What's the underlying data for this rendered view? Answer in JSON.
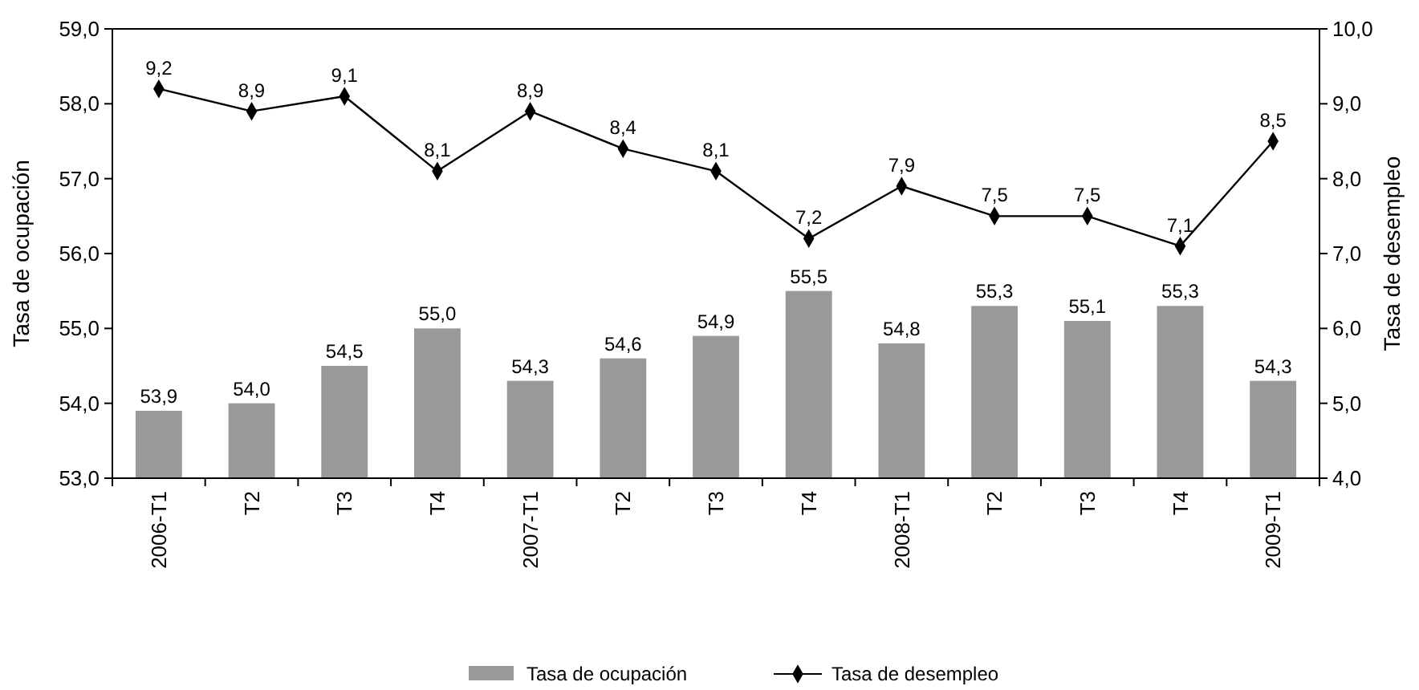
{
  "chart_data": {
    "type": "bar",
    "categories": [
      "2006-T1",
      "T2",
      "T3",
      "T4",
      "2007-T1",
      "T2",
      "T3",
      "T4",
      "2008-T1",
      "T2",
      "T3",
      "T4",
      "2009-T1"
    ],
    "series": [
      {
        "name": "Tasa de ocupación",
        "color": "#999999",
        "values": [
          53.9,
          54.0,
          54.5,
          55.0,
          54.3,
          54.6,
          54.9,
          55.5,
          54.8,
          55.3,
          55.1,
          55.3,
          54.3
        ],
        "value_labels": [
          "53,9",
          "54,0",
          "54,5",
          "55,0",
          "54,3",
          "54,6",
          "54,9",
          "55,5",
          "54,8",
          "55,3",
          "55,1",
          "55,3",
          "54,3"
        ]
      },
      {
        "name": "Tasa de desempleo",
        "type": "line",
        "axis": "y2",
        "color": "#000000",
        "marker": "diamond",
        "values": [
          9.2,
          8.9,
          9.1,
          8.1,
          8.9,
          8.4,
          8.1,
          7.2,
          7.9,
          7.5,
          7.5,
          7.1,
          8.5
        ],
        "value_labels": [
          "9,2",
          "8,9",
          "9,1",
          "8,1",
          "8,9",
          "8,4",
          "8,1",
          "7,2",
          "7,9",
          "7,5",
          "7,5",
          "7,1",
          "8,5"
        ]
      }
    ],
    "ylabel": "Tasa de ocupación",
    "y2label": "Tasa de desempleo",
    "ylim": [
      53,
      59
    ],
    "yticks": [
      {
        "value": 53,
        "label": "53,0"
      },
      {
        "value": 54,
        "label": "54,0"
      },
      {
        "value": 55,
        "label": "55,0"
      },
      {
        "value": 56,
        "label": "56,0"
      },
      {
        "value": 57,
        "label": "57,0"
      },
      {
        "value": 58,
        "label": "58,0"
      },
      {
        "value": 59,
        "label": "59,0"
      }
    ],
    "y2lim": [
      4,
      10
    ],
    "y2ticks": [
      {
        "value": 4,
        "label": "4,0"
      },
      {
        "value": 5,
        "label": "5,0"
      },
      {
        "value": 6,
        "label": "6,0"
      },
      {
        "value": 7,
        "label": "7,0"
      },
      {
        "value": 8,
        "label": "8,0"
      },
      {
        "value": 9,
        "label": "9,0"
      },
      {
        "value": 10,
        "label": "10,0"
      }
    ],
    "legend": "bottom",
    "grid": false
  }
}
